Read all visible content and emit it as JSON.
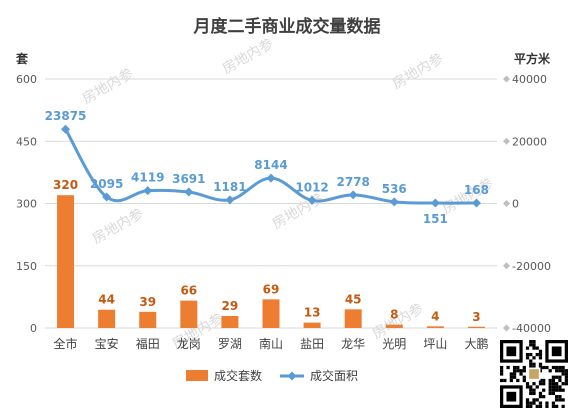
{
  "chart_data": {
    "type": "bar",
    "title": "月度二手商业成交量数据",
    "y_left_unit": "套",
    "y_right_unit": "平方米",
    "categories": [
      "全市",
      "宝安",
      "福田",
      "龙岗",
      "罗湖",
      "南山",
      "盐田",
      "龙华",
      "光明",
      "坪山",
      "大鹏"
    ],
    "y_left_ticks": [
      "0",
      "150",
      "300",
      "450",
      "600"
    ],
    "y_right_ticks": [
      "-40000",
      "-20000",
      "0",
      "20000",
      "40000"
    ],
    "ylim_left": [
      0,
      600
    ],
    "ylim_right": [
      -40000,
      40000
    ],
    "grid": true,
    "legend_position": "bottom",
    "series": [
      {
        "name": "成交套数",
        "type": "bar",
        "axis": "left",
        "color": "#ED7D31",
        "values": [
          320,
          44,
          39,
          66,
          29,
          69,
          13,
          45,
          8,
          4,
          3
        ],
        "labels": [
          "320",
          "44",
          "39",
          "66",
          "29",
          "69",
          "13",
          "45",
          "8",
          "4",
          "3"
        ]
      },
      {
        "name": "成交面积",
        "type": "line",
        "axis": "right",
        "color": "#5B9BD5",
        "values": [
          23875,
          2095,
          4119,
          3691,
          1181,
          8144,
          1012,
          2778,
          536,
          151,
          168
        ],
        "labels": [
          "23875",
          "2095",
          "4119",
          "3691",
          "1181",
          "8144",
          "1012",
          "2778",
          "536",
          "151",
          "168"
        ]
      }
    ]
  },
  "watermark": "房地内参"
}
